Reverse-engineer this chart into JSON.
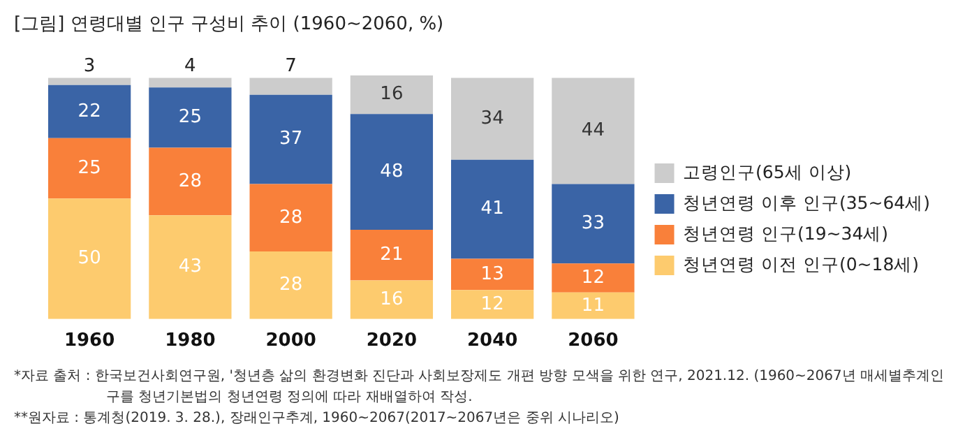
{
  "chart_data": {
    "type": "bar",
    "stacked": true,
    "title": "[그림] 연령대별 인구 구성비 추이 (1960~2060, %)",
    "categories": [
      "1960",
      "1980",
      "2000",
      "2020",
      "2040",
      "2060"
    ],
    "series": [
      {
        "name": "청년연령 이전 인구(0~18세)",
        "color": "#fdcb6e",
        "values": [
          50,
          43,
          28,
          16,
          12,
          11
        ]
      },
      {
        "name": "청년연령 인구(19~34세)",
        "color": "#f9803a",
        "values": [
          25,
          28,
          28,
          21,
          13,
          12
        ]
      },
      {
        "name": "청년연령 이후 인구(35~64세)",
        "color": "#3a64a6",
        "values": [
          22,
          25,
          37,
          48,
          41,
          33
        ]
      },
      {
        "name": "고령인구(65세 이상)",
        "color": "#cccccc",
        "values": [
          3,
          4,
          7,
          16,
          34,
          44
        ]
      }
    ],
    "ylim": [
      0,
      101
    ],
    "tick_labels": "x",
    "grid": false,
    "legend": "right",
    "data_labels": true,
    "annotations": [
      "*자료 출처 : 한국보건사회연구원, '청년층 삶의 환경변화 진단과 사회보장제도 개편 방향 모색을 위한 연구, 2021.12. (1960~2067년 매세별추계인구를 청년기본법의 청년연령 정의에 따라 재배열하여 작성.",
      "**원자료 : 통계청(2019. 3. 28.), 장래인구추계, 1960~2067(2017~2067년은 중위 시나리오)"
    ]
  }
}
